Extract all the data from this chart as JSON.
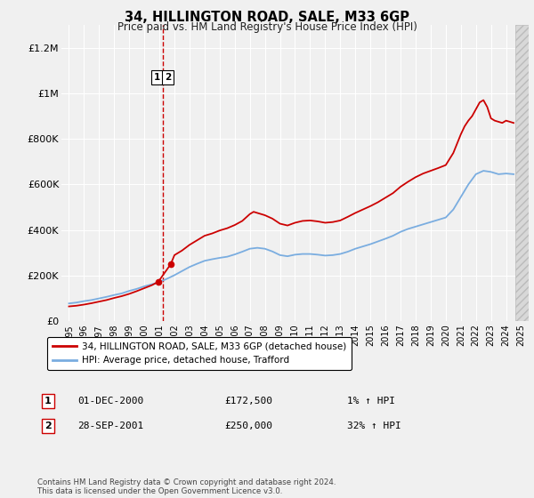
{
  "title": "34, HILLINGTON ROAD, SALE, M33 6GP",
  "subtitle": "Price paid vs. HM Land Registry's House Price Index (HPI)",
  "ylim": [
    0,
    1300000
  ],
  "xlim": [
    1994.5,
    2025.5
  ],
  "yticks": [
    0,
    200000,
    400000,
    600000,
    800000,
    1000000,
    1200000
  ],
  "ytick_labels": [
    "£0",
    "£200K",
    "£400K",
    "£600K",
    "£800K",
    "£1M",
    "£1.2M"
  ],
  "xticks": [
    1995,
    1996,
    1997,
    1998,
    1999,
    2000,
    2001,
    2002,
    2003,
    2004,
    2005,
    2006,
    2007,
    2008,
    2009,
    2010,
    2011,
    2012,
    2013,
    2014,
    2015,
    2016,
    2017,
    2018,
    2019,
    2020,
    2021,
    2022,
    2023,
    2024,
    2025
  ],
  "purchases": [
    {
      "year": 2000.92,
      "price": 172500,
      "label": "1"
    },
    {
      "year": 2001.75,
      "price": 250000,
      "label": "2"
    }
  ],
  "vline_x": 2001.25,
  "legend_line1": "34, HILLINGTON ROAD, SALE, M33 6GP (detached house)",
  "legend_line2": "HPI: Average price, detached house, Trafford",
  "annotation1_num": "1",
  "annotation1_date": "01-DEC-2000",
  "annotation1_price": "£172,500",
  "annotation1_hpi": "1% ↑ HPI",
  "annotation2_num": "2",
  "annotation2_date": "28-SEP-2001",
  "annotation2_price": "£250,000",
  "annotation2_hpi": "32% ↑ HPI",
  "footnote": "Contains HM Land Registry data © Crown copyright and database right 2024.\nThis data is licensed under the Open Government Licence v3.0.",
  "line_color_red": "#cc0000",
  "line_color_blue": "#7aade0",
  "bg_color": "#f0f0f0",
  "hatch_start": 2024.6
}
